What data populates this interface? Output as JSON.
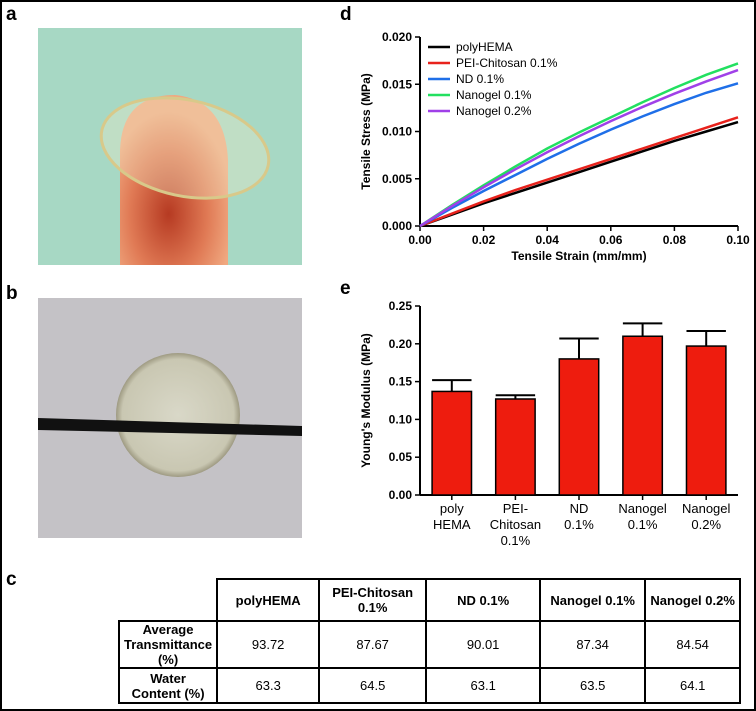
{
  "panel_labels": [
    "a",
    "b",
    "c",
    "d",
    "e"
  ],
  "chart_data": [
    {
      "type": "line",
      "xlabel": "Tensile Strain (mm/mm)",
      "ylabel": "Tensile Stress (MPa)",
      "x": [
        0,
        0.01,
        0.02,
        0.03,
        0.04,
        0.05,
        0.06,
        0.07,
        0.08,
        0.09,
        0.1
      ],
      "xlim": [
        0,
        0.1
      ],
      "ylim": [
        0,
        0.02
      ],
      "xticks": [
        {
          "value": 0,
          "label": "0.00"
        },
        {
          "value": 0.02,
          "label": "0.02"
        },
        {
          "value": 0.04,
          "label": "0.04"
        },
        {
          "value": 0.06,
          "label": "0.06"
        },
        {
          "value": 0.08,
          "label": "0.08"
        },
        {
          "value": 0.1,
          "label": "0.10"
        }
      ],
      "yticks": [
        {
          "value": 0,
          "label": "0.000"
        },
        {
          "value": 0.005,
          "label": "0.005"
        },
        {
          "value": 0.01,
          "label": "0.010"
        },
        {
          "value": 0.015,
          "label": "0.015"
        },
        {
          "value": 0.02,
          "label": "0.020"
        }
      ],
      "legend": "upper left",
      "series": [
        {
          "name": "polyHEMA",
          "color": "#000000",
          "values": [
            0,
            0.0012,
            0.0024,
            0.0035,
            0.0046,
            0.0057,
            0.0068,
            0.0079,
            0.009,
            0.01,
            0.011
          ]
        },
        {
          "name": "PEI-Chitosan 0.1%",
          "color": "#e8221c",
          "values": [
            0,
            0.0013,
            0.0026,
            0.0038,
            0.0049,
            0.006,
            0.0071,
            0.0082,
            0.0093,
            0.0104,
            0.0115
          ]
        },
        {
          "name": "ND 0.1%",
          "color": "#1f6fe8",
          "values": [
            0,
            0.0019,
            0.0037,
            0.0054,
            0.0071,
            0.0087,
            0.0102,
            0.0116,
            0.0129,
            0.0141,
            0.0151
          ]
        },
        {
          "name": "Nanogel 0.1%",
          "color": "#22e060",
          "values": [
            0,
            0.0022,
            0.0043,
            0.0063,
            0.0082,
            0.0099,
            0.0115,
            0.0131,
            0.0146,
            0.016,
            0.0172
          ]
        },
        {
          "name": "Nanogel 0.2%",
          "color": "#a040e8",
          "values": [
            0,
            0.0021,
            0.0041,
            0.006,
            0.0078,
            0.0095,
            0.0111,
            0.0126,
            0.014,
            0.0153,
            0.0165
          ]
        }
      ]
    },
    {
      "type": "bar",
      "ylabel": "Young's Modulus (MPa)",
      "color": "#ee1c0e",
      "categories": [
        [
          "poly",
          "HEMA"
        ],
        [
          "PEI-",
          "Chitosan",
          "0.1%"
        ],
        [
          "ND",
          "0.1%"
        ],
        [
          "Nanogel",
          "0.1%"
        ],
        [
          "Nanogel",
          "0.2%"
        ]
      ],
      "values": [
        0.137,
        0.127,
        0.18,
        0.21,
        0.197
      ],
      "errors": [
        0.015,
        0.005,
        0.027,
        0.017,
        0.02
      ],
      "ylim": [
        0,
        0.25
      ],
      "yticks": [
        {
          "value": 0,
          "label": "0.00"
        },
        {
          "value": 0.05,
          "label": "0.05"
        },
        {
          "value": 0.1,
          "label": "0.10"
        },
        {
          "value": 0.15,
          "label": "0.15"
        },
        {
          "value": 0.2,
          "label": "0.20"
        },
        {
          "value": 0.25,
          "label": "0.25"
        }
      ]
    }
  ],
  "table": {
    "header": [
      "polyHEMA",
      "PEI-Chitosan 0.1%",
      "ND 0.1%",
      "Nanogel 0.1%",
      "Nanogel 0.2%"
    ],
    "rows": [
      [
        "Average Transmittance (%)",
        93.72,
        87.67,
        90.01,
        87.34,
        84.54
      ],
      [
        "Water Content (%)",
        63.3,
        64.5,
        63.1,
        63.5,
        64.1
      ]
    ]
  }
}
